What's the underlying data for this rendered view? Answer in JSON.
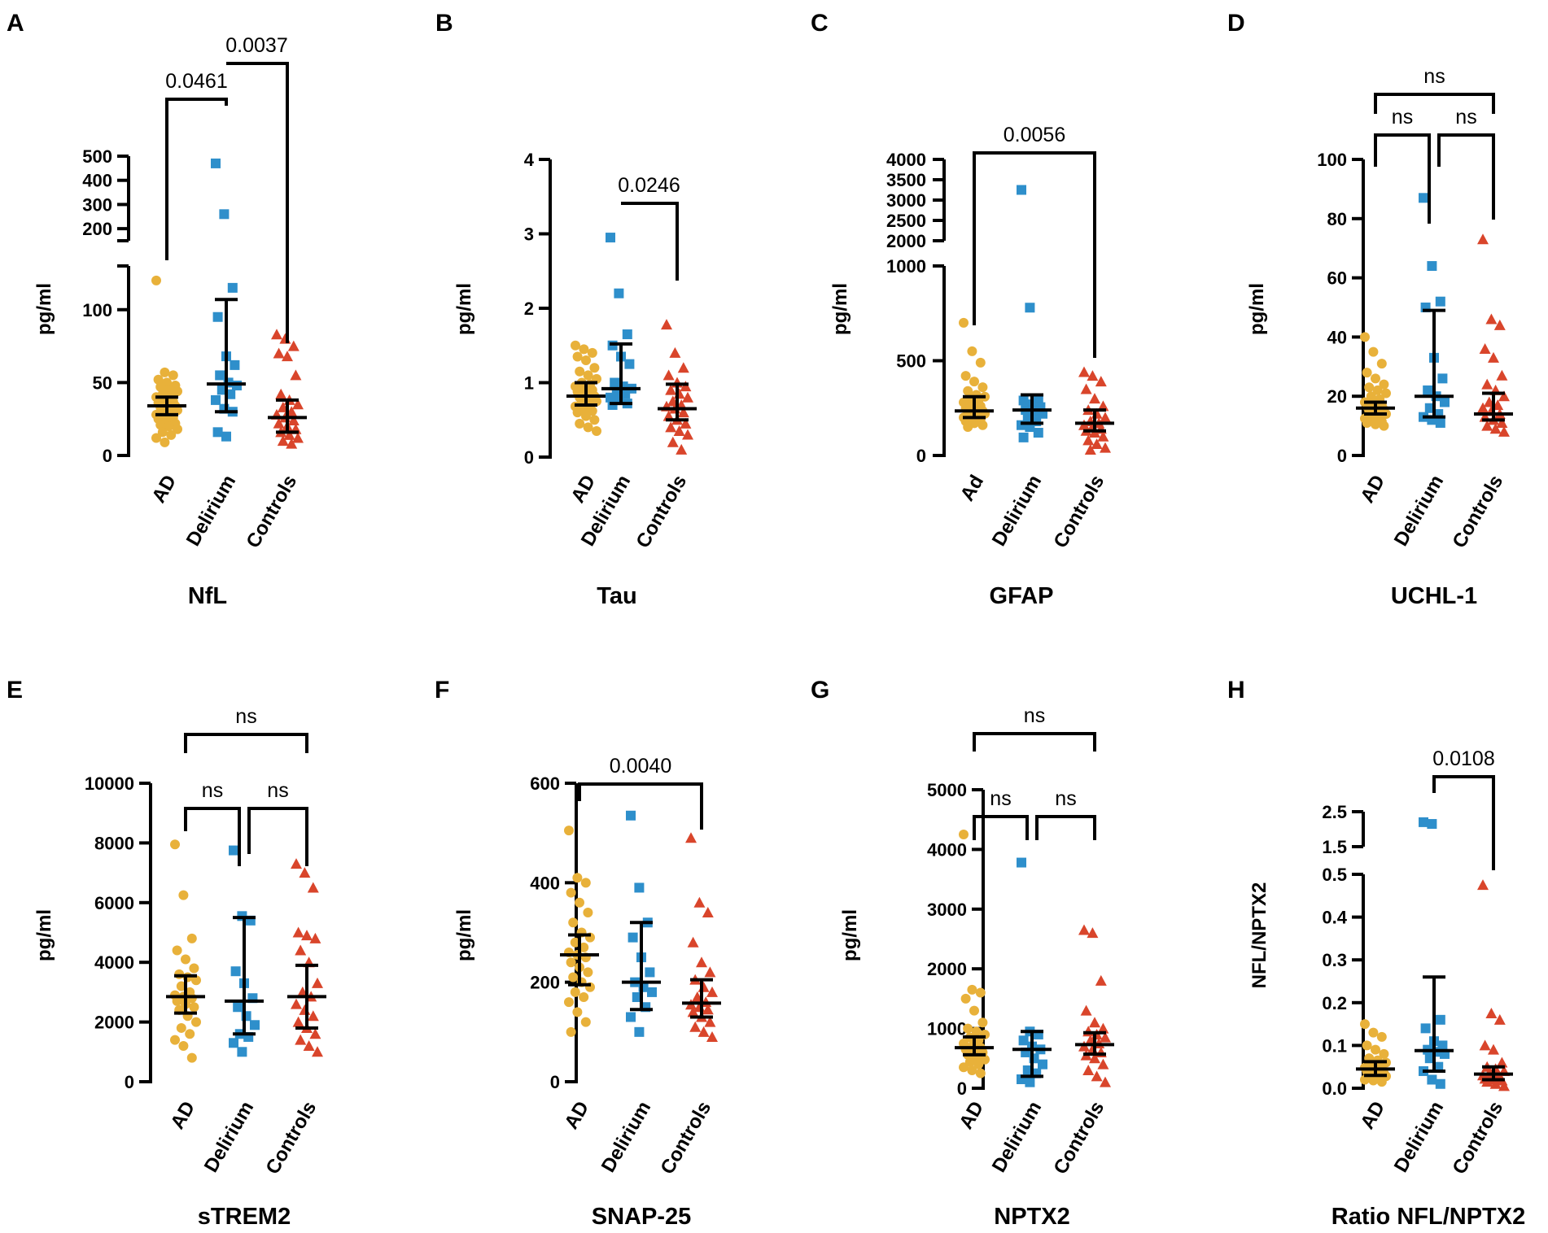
{
  "colors": {
    "AD": "#E8B13A",
    "Delirium": "#2E8FCB",
    "Controls": "#D9452B"
  },
  "chart_data": [
    {
      "panel": "A",
      "type": "scatter",
      "title": "NfL",
      "ylabel": "pg/ml",
      "categories": [
        "AD",
        "Delirium",
        "Controls"
      ],
      "ylim": [
        0,
        130
      ],
      "yticks": [
        0,
        50,
        100
      ],
      "break": {
        "upper_ylim": [
          150,
          500
        ],
        "upper_ticks": [
          200,
          300,
          400,
          500
        ]
      },
      "series": [
        {
          "name": "AD",
          "median": 34,
          "ci": [
            28,
            40
          ],
          "values": [
            120,
            57,
            55,
            52,
            50,
            48,
            47,
            45,
            44,
            42,
            41,
            40,
            38,
            37,
            36,
            35,
            34,
            33,
            32,
            31,
            30,
            29,
            28,
            27,
            26,
            25,
            24,
            22,
            21,
            20,
            18,
            16,
            14,
            12,
            9
          ]
        },
        {
          "name": "Delirium",
          "median": 49,
          "ci": [
            30,
            107
          ],
          "values": [
            470,
            260,
            115,
            95,
            68,
            62,
            55,
            50,
            48,
            45,
            42,
            38,
            32,
            30,
            16,
            13
          ]
        },
        {
          "name": "Controls",
          "median": 26,
          "ci": [
            16,
            38
          ],
          "values": [
            83,
            80,
            75,
            70,
            68,
            55,
            42,
            38,
            35,
            33,
            30,
            28,
            26,
            24,
            22,
            20,
            18,
            16,
            14,
            12,
            10,
            8
          ]
        }
      ],
      "comparisons": [
        {
          "groups": [
            "AD",
            "Delirium"
          ],
          "label": "0.0461"
        },
        {
          "groups": [
            "Delirium",
            "Controls"
          ],
          "label": "0.0037"
        }
      ]
    },
    {
      "panel": "B",
      "type": "scatter",
      "title": "Tau",
      "ylabel": "pg/ml",
      "categories": [
        "AD",
        "Delirium",
        "Controls"
      ],
      "ylim": [
        0,
        4
      ],
      "yticks": [
        0,
        1,
        2,
        3,
        4
      ],
      "series": [
        {
          "name": "AD",
          "median": 0.82,
          "ci": [
            0.7,
            1.0
          ],
          "values": [
            1.5,
            1.45,
            1.4,
            1.35,
            1.3,
            1.2,
            1.15,
            1.1,
            1.05,
            1.0,
            0.98,
            0.95,
            0.92,
            0.9,
            0.88,
            0.85,
            0.82,
            0.8,
            0.78,
            0.75,
            0.72,
            0.7,
            0.68,
            0.65,
            0.62,
            0.6,
            0.55,
            0.5,
            0.45,
            0.4,
            0.35
          ]
        },
        {
          "name": "Delirium",
          "median": 0.92,
          "ci": [
            0.72,
            1.52
          ],
          "values": [
            2.95,
            2.2,
            1.65,
            1.5,
            1.35,
            1.25,
            1.0,
            0.95,
            0.92,
            0.9,
            0.85,
            0.8,
            0.78,
            0.72,
            0.7
          ]
        },
        {
          "name": "Controls",
          "median": 0.65,
          "ci": [
            0.5,
            0.98
          ],
          "values": [
            1.78,
            1.4,
            1.2,
            1.1,
            1.0,
            0.95,
            0.9,
            0.85,
            0.8,
            0.75,
            0.7,
            0.68,
            0.65,
            0.6,
            0.55,
            0.5,
            0.45,
            0.4,
            0.35,
            0.3,
            0.2,
            0.1
          ]
        }
      ],
      "comparisons": [
        {
          "groups": [
            "Delirium",
            "Controls"
          ],
          "label": "0.0246"
        }
      ]
    },
    {
      "panel": "C",
      "type": "scatter",
      "title": "GFAP",
      "ylabel": "pg/ml",
      "categories": [
        "Ad",
        "Delirium",
        "Controls"
      ],
      "ylim": [
        0,
        1000
      ],
      "yticks": [
        0,
        500,
        1000
      ],
      "break": {
        "upper_ylim": [
          2000,
          4000
        ],
        "upper_ticks": [
          2000,
          2500,
          3000,
          3500,
          4000
        ]
      },
      "series": [
        {
          "name": "AD",
          "median": 235,
          "ci": [
            200,
            310
          ],
          "values": [
            700,
            550,
            490,
            420,
            390,
            360,
            340,
            320,
            310,
            300,
            290,
            280,
            270,
            260,
            250,
            240,
            235,
            230,
            225,
            220,
            210,
            205,
            200,
            195,
            190,
            180,
            170,
            160,
            150
          ]
        },
        {
          "name": "Delirium",
          "median": 240,
          "ci": [
            170,
            320
          ],
          "values": [
            3250,
            780,
            300,
            290,
            270,
            255,
            240,
            230,
            220,
            200,
            180,
            160,
            150,
            120,
            95
          ]
        },
        {
          "name": "Controls",
          "median": 170,
          "ci": [
            130,
            240
          ],
          "values": [
            440,
            420,
            390,
            350,
            300,
            260,
            240,
            220,
            200,
            180,
            170,
            160,
            150,
            140,
            130,
            120,
            100,
            80,
            60,
            40,
            30
          ]
        }
      ],
      "comparisons": [
        {
          "groups": [
            "AD",
            "Controls"
          ],
          "label": "0.0056"
        }
      ]
    },
    {
      "panel": "D",
      "type": "scatter",
      "title": "UCHL-1",
      "ylabel": "pg/ml",
      "categories": [
        "AD",
        "Delirium",
        "Controls"
      ],
      "ylim": [
        0,
        100
      ],
      "yticks": [
        0,
        20,
        40,
        60,
        80,
        100
      ],
      "series": [
        {
          "name": "AD",
          "median": 16,
          "ci": [
            14,
            18
          ],
          "values": [
            40,
            35,
            31,
            28,
            26,
            24,
            23,
            22,
            21,
            20,
            19,
            18,
            17.5,
            17,
            16.5,
            16,
            15.5,
            15,
            14.5,
            14,
            13.5,
            13,
            12.5,
            12,
            11.5,
            11,
            10.5,
            10
          ]
        },
        {
          "name": "Delirium",
          "median": 20,
          "ci": [
            13,
            49
          ],
          "values": [
            87,
            64,
            52,
            50,
            33,
            26,
            22,
            20,
            18,
            16,
            14,
            13,
            12,
            11
          ]
        },
        {
          "name": "Controls",
          "median": 14,
          "ci": [
            12,
            21
          ],
          "values": [
            73,
            46,
            44,
            36,
            33,
            27,
            24,
            22,
            20,
            18,
            17,
            16,
            15,
            14,
            13,
            12,
            11,
            10,
            9,
            8
          ]
        }
      ],
      "comparisons": [
        {
          "groups": [
            "AD",
            "Delirium"
          ],
          "label": "ns"
        },
        {
          "groups": [
            "Delirium",
            "Controls"
          ],
          "label": "ns"
        },
        {
          "groups": [
            "AD",
            "Controls"
          ],
          "label": "ns"
        }
      ]
    },
    {
      "panel": "E",
      "type": "scatter",
      "title": "sTREM2",
      "ylabel": "pg/ml",
      "categories": [
        "AD",
        "Delirium",
        "Controls"
      ],
      "ylim": [
        0,
        10000
      ],
      "yticks": [
        0,
        2000,
        4000,
        6000,
        8000,
        10000
      ],
      "series": [
        {
          "name": "AD",
          "median": 2850,
          "ci": [
            2300,
            3550
          ],
          "values": [
            7950,
            6250,
            4800,
            4400,
            4100,
            3800,
            3600,
            3500,
            3400,
            3200,
            3000,
            2900,
            2850,
            2800,
            2700,
            2600,
            2500,
            2400,
            2200,
            2000,
            1800,
            1600,
            1400,
            1200,
            800
          ]
        },
        {
          "name": "Delirium",
          "median": 2700,
          "ci": [
            1600,
            5500
          ],
          "values": [
            7750,
            5550,
            5400,
            3700,
            3300,
            2800,
            2500,
            2200,
            1900,
            1600,
            1500,
            1300,
            1000
          ]
        },
        {
          "name": "Controls",
          "median": 2850,
          "ci": [
            1800,
            3900
          ],
          "values": [
            7300,
            7000,
            6500,
            5000,
            4900,
            4800,
            4400,
            4000,
            3300,
            3000,
            2850,
            2600,
            2400,
            2200,
            2000,
            1800,
            1600,
            1400,
            1200,
            1000
          ]
        }
      ],
      "comparisons": [
        {
          "groups": [
            "AD",
            "Delirium"
          ],
          "label": "ns"
        },
        {
          "groups": [
            "Delirium",
            "Controls"
          ],
          "label": "ns"
        },
        {
          "groups": [
            "AD",
            "Controls"
          ],
          "label": "ns"
        }
      ]
    },
    {
      "panel": "F",
      "type": "scatter",
      "title": "SNAP-25",
      "ylabel": "pg/ml",
      "categories": [
        "AD",
        "Delirium",
        "Controls"
      ],
      "ylim": [
        0,
        600
      ],
      "yticks": [
        0,
        200,
        400,
        600
      ],
      "series": [
        {
          "name": "AD",
          "median": 255,
          "ci": [
            195,
            295
          ],
          "values": [
            505,
            410,
            400,
            380,
            360,
            340,
            320,
            300,
            290,
            280,
            270,
            260,
            255,
            250,
            240,
            230,
            220,
            210,
            200,
            190,
            180,
            170,
            160,
            140,
            120,
            100
          ]
        },
        {
          "name": "Delirium",
          "median": 200,
          "ci": [
            145,
            320
          ],
          "values": [
            535,
            390,
            320,
            290,
            250,
            220,
            200,
            190,
            180,
            170,
            150,
            130,
            100
          ]
        },
        {
          "name": "Controls",
          "median": 158,
          "ci": [
            130,
            205
          ],
          "values": [
            490,
            360,
            340,
            280,
            240,
            220,
            205,
            190,
            180,
            170,
            160,
            155,
            150,
            145,
            140,
            130,
            120,
            110,
            100,
            90
          ]
        }
      ],
      "comparisons": [
        {
          "groups": [
            "AD",
            "Controls"
          ],
          "label": "0.0040"
        }
      ]
    },
    {
      "panel": "G",
      "type": "scatter",
      "title": "NPTX2",
      "ylabel": "pg/ml",
      "categories": [
        "AD",
        "Delirium",
        "Controls"
      ],
      "ylim": [
        0,
        5000
      ],
      "yticks": [
        0,
        1000,
        2000,
        3000,
        4000,
        5000
      ],
      "series": [
        {
          "name": "AD",
          "median": 680,
          "ci": [
            560,
            860
          ],
          "values": [
            4250,
            1650,
            1600,
            1500,
            1300,
            1100,
            1000,
            950,
            900,
            850,
            800,
            750,
            700,
            680,
            650,
            620,
            600,
            560,
            520,
            480,
            440,
            400,
            350,
            300,
            250
          ]
        },
        {
          "name": "Delirium",
          "median": 650,
          "ci": [
            200,
            950
          ],
          "values": [
            3780,
            950,
            900,
            800,
            700,
            650,
            600,
            500,
            400,
            300,
            250,
            150,
            100
          ]
        },
        {
          "name": "Controls",
          "median": 730,
          "ci": [
            570,
            930
          ],
          "values": [
            2650,
            2600,
            1800,
            1300,
            1100,
            1000,
            950,
            900,
            850,
            800,
            750,
            700,
            650,
            600,
            550,
            500,
            400,
            300,
            200,
            100
          ]
        }
      ],
      "comparisons": [
        {
          "groups": [
            "AD",
            "Delirium"
          ],
          "label": "ns"
        },
        {
          "groups": [
            "Delirium",
            "Controls"
          ],
          "label": "ns"
        },
        {
          "groups": [
            "AD",
            "Controls"
          ],
          "label": "ns"
        }
      ]
    },
    {
      "panel": "H",
      "type": "scatter",
      "title": "Ratio NFL/NPTX2",
      "ylabel": "NFL/NPTX2",
      "categories": [
        "AD",
        "Delirium",
        "Controls"
      ],
      "ylim": [
        0,
        0.5
      ],
      "yticks": [
        0.0,
        0.1,
        0.2,
        0.3,
        0.4,
        0.5
      ],
      "break": {
        "upper_ylim": [
          1.5,
          2.5
        ],
        "upper_ticks": [
          1.5,
          2.5
        ]
      },
      "series": [
        {
          "name": "AD",
          "median": 0.045,
          "ci": [
            0.03,
            0.062
          ],
          "values": [
            0.15,
            0.13,
            0.12,
            0.1,
            0.09,
            0.08,
            0.07,
            0.065,
            0.06,
            0.055,
            0.05,
            0.048,
            0.045,
            0.042,
            0.04,
            0.038,
            0.035,
            0.032,
            0.03,
            0.028,
            0.025,
            0.022,
            0.02,
            0.018,
            0.015
          ]
        },
        {
          "name": "Delirium",
          "median": 0.088,
          "ci": [
            0.04,
            0.26
          ],
          "values": [
            2.2,
            2.15,
            0.16,
            0.14,
            0.11,
            0.1,
            0.09,
            0.085,
            0.08,
            0.07,
            0.05,
            0.04,
            0.02,
            0.01
          ]
        },
        {
          "name": "Controls",
          "median": 0.033,
          "ci": [
            0.02,
            0.05
          ],
          "values": [
            0.475,
            0.175,
            0.16,
            0.1,
            0.09,
            0.06,
            0.05,
            0.045,
            0.04,
            0.035,
            0.033,
            0.03,
            0.028,
            0.025,
            0.022,
            0.02,
            0.018,
            0.015,
            0.01,
            0.005
          ]
        }
      ],
      "comparisons": [
        {
          "groups": [
            "Delirium",
            "Controls"
          ],
          "label": "0.0108"
        }
      ]
    }
  ]
}
